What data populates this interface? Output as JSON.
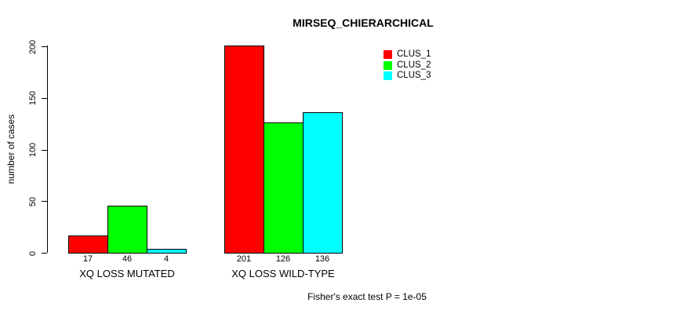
{
  "chart_data": {
    "type": "bar",
    "title": "MIRSEQ_CHIERARCHICAL",
    "ylabel": "number of cases",
    "xlabel": "",
    "subtitle": "Fisher's exact test P = 1e-05",
    "ylim": [
      0,
      200
    ],
    "yticks": [
      0,
      50,
      100,
      150,
      200
    ],
    "grid": false,
    "legend_position": "top-right",
    "bar_value_labels_shown": true,
    "categories": [
      "XQ LOSS MUTATED",
      "XQ LOSS WILD-TYPE"
    ],
    "series": [
      {
        "name": "CLUS_1",
        "color": "#ff0000",
        "values": [
          17,
          201
        ]
      },
      {
        "name": "CLUS_2",
        "color": "#00ff00",
        "values": [
          46,
          126
        ]
      },
      {
        "name": "CLUS_3",
        "color": "#00ffff",
        "values": [
          4,
          136
        ]
      }
    ],
    "colors": {
      "background": "#ffffff",
      "axis": "#000000",
      "bar_border": "#000000",
      "text": "#000000"
    }
  }
}
